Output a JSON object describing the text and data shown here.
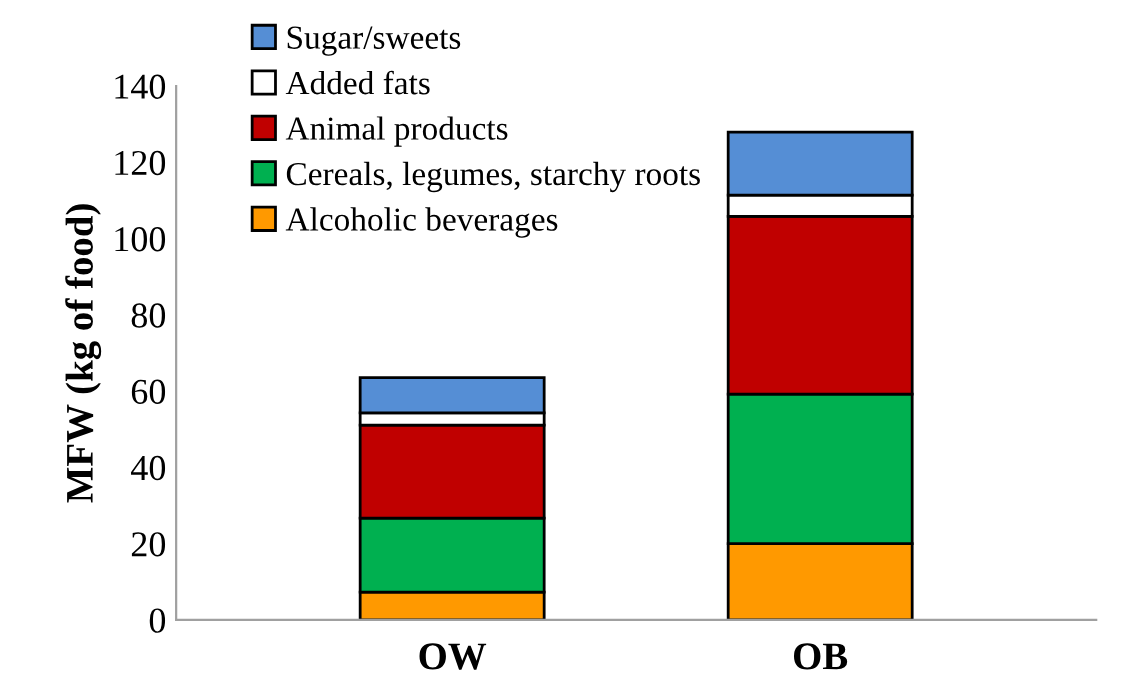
{
  "chart_data": {
    "type": "bar",
    "stacked": true,
    "ylabel": "MFW (kg of food)",
    "categories": [
      "OW",
      "OB"
    ],
    "series": [
      {
        "name": "Alcoholic beverages",
        "color": "#ff9900",
        "values": [
          7.3,
          20.0
        ]
      },
      {
        "name": "Cereals, legumes, starchy roots",
        "color": "#00b050",
        "values": [
          19.4,
          39.2
        ]
      },
      {
        "name": "Animal products",
        "color": "#c00000",
        "values": [
          24.4,
          46.6
        ]
      },
      {
        "name": "Added fats",
        "color": "#ffffff",
        "values": [
          3.2,
          5.6
        ]
      },
      {
        "name": "Sugar/sweets",
        "color": "#558ed5",
        "values": [
          9.2,
          16.5
        ]
      }
    ],
    "ylim": [
      0,
      140
    ],
    "yticks": [
      0,
      20,
      40,
      60,
      80,
      100,
      120,
      140
    ],
    "grid": false,
    "legend": "top left"
  }
}
